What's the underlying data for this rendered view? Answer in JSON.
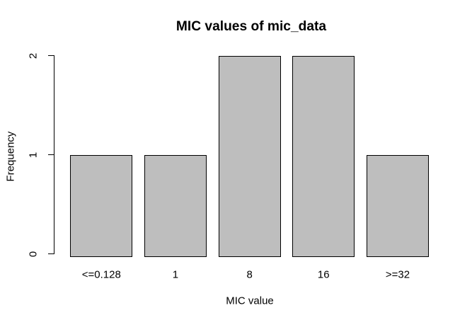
{
  "chart_data": {
    "type": "bar",
    "categories": [
      "<=0.128",
      "1",
      "8",
      "16",
      ">=32"
    ],
    "values": [
      1,
      1,
      2,
      2,
      1
    ],
    "title": "MIC values of mic_data",
    "xlabel": "MIC value",
    "ylabel": "Frequency",
    "ylim": [
      0,
      2
    ],
    "yticks": [
      0,
      1,
      2
    ],
    "bar_fill": "#bebebe",
    "bar_border": "#000000",
    "background": "#ffffff",
    "legend": "none",
    "grid": "off"
  }
}
